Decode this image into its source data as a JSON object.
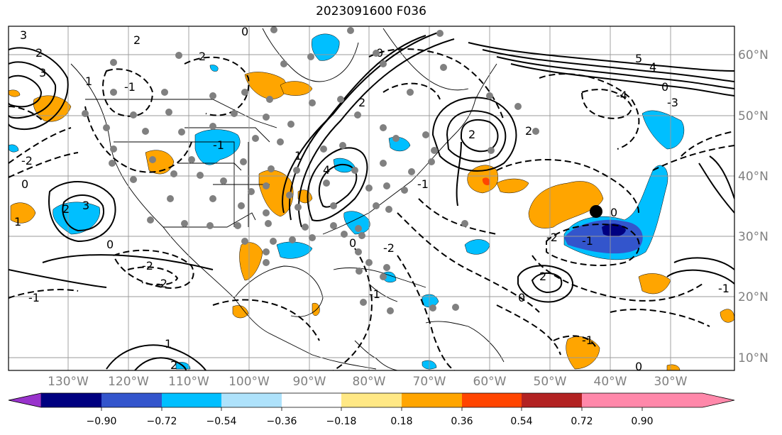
{
  "map": {
    "title": "2023091600 F036",
    "lon_ticks": [
      "130°W",
      "120°W",
      "110°W",
      "100°W",
      "90°W",
      "80°W",
      "70°W",
      "60°W",
      "50°W",
      "40°W",
      "30°W"
    ],
    "lat_ticks": [
      "60°N",
      "50°N",
      "40°N",
      "30°N",
      "20°N",
      "10°N"
    ],
    "contour_labels": [
      "3",
      "2",
      "1",
      "0",
      "4",
      "5",
      "-1",
      "-2",
      "-3",
      "-4"
    ],
    "colorbar": {
      "ticks": [
        "−0.90",
        "−0.72",
        "−0.54",
        "−0.36",
        "−0.18",
        "0.18",
        "0.36",
        "0.54",
        "0.72",
        "0.90"
      ],
      "colors": [
        "#9933cc",
        "#000080",
        "#3355cc",
        "#00bfff",
        "#aee2fb",
        "#ffffff",
        "#ffe885",
        "#ffa500",
        "#ff4500",
        "#b22222",
        "#ff88aa"
      ]
    }
  }
}
